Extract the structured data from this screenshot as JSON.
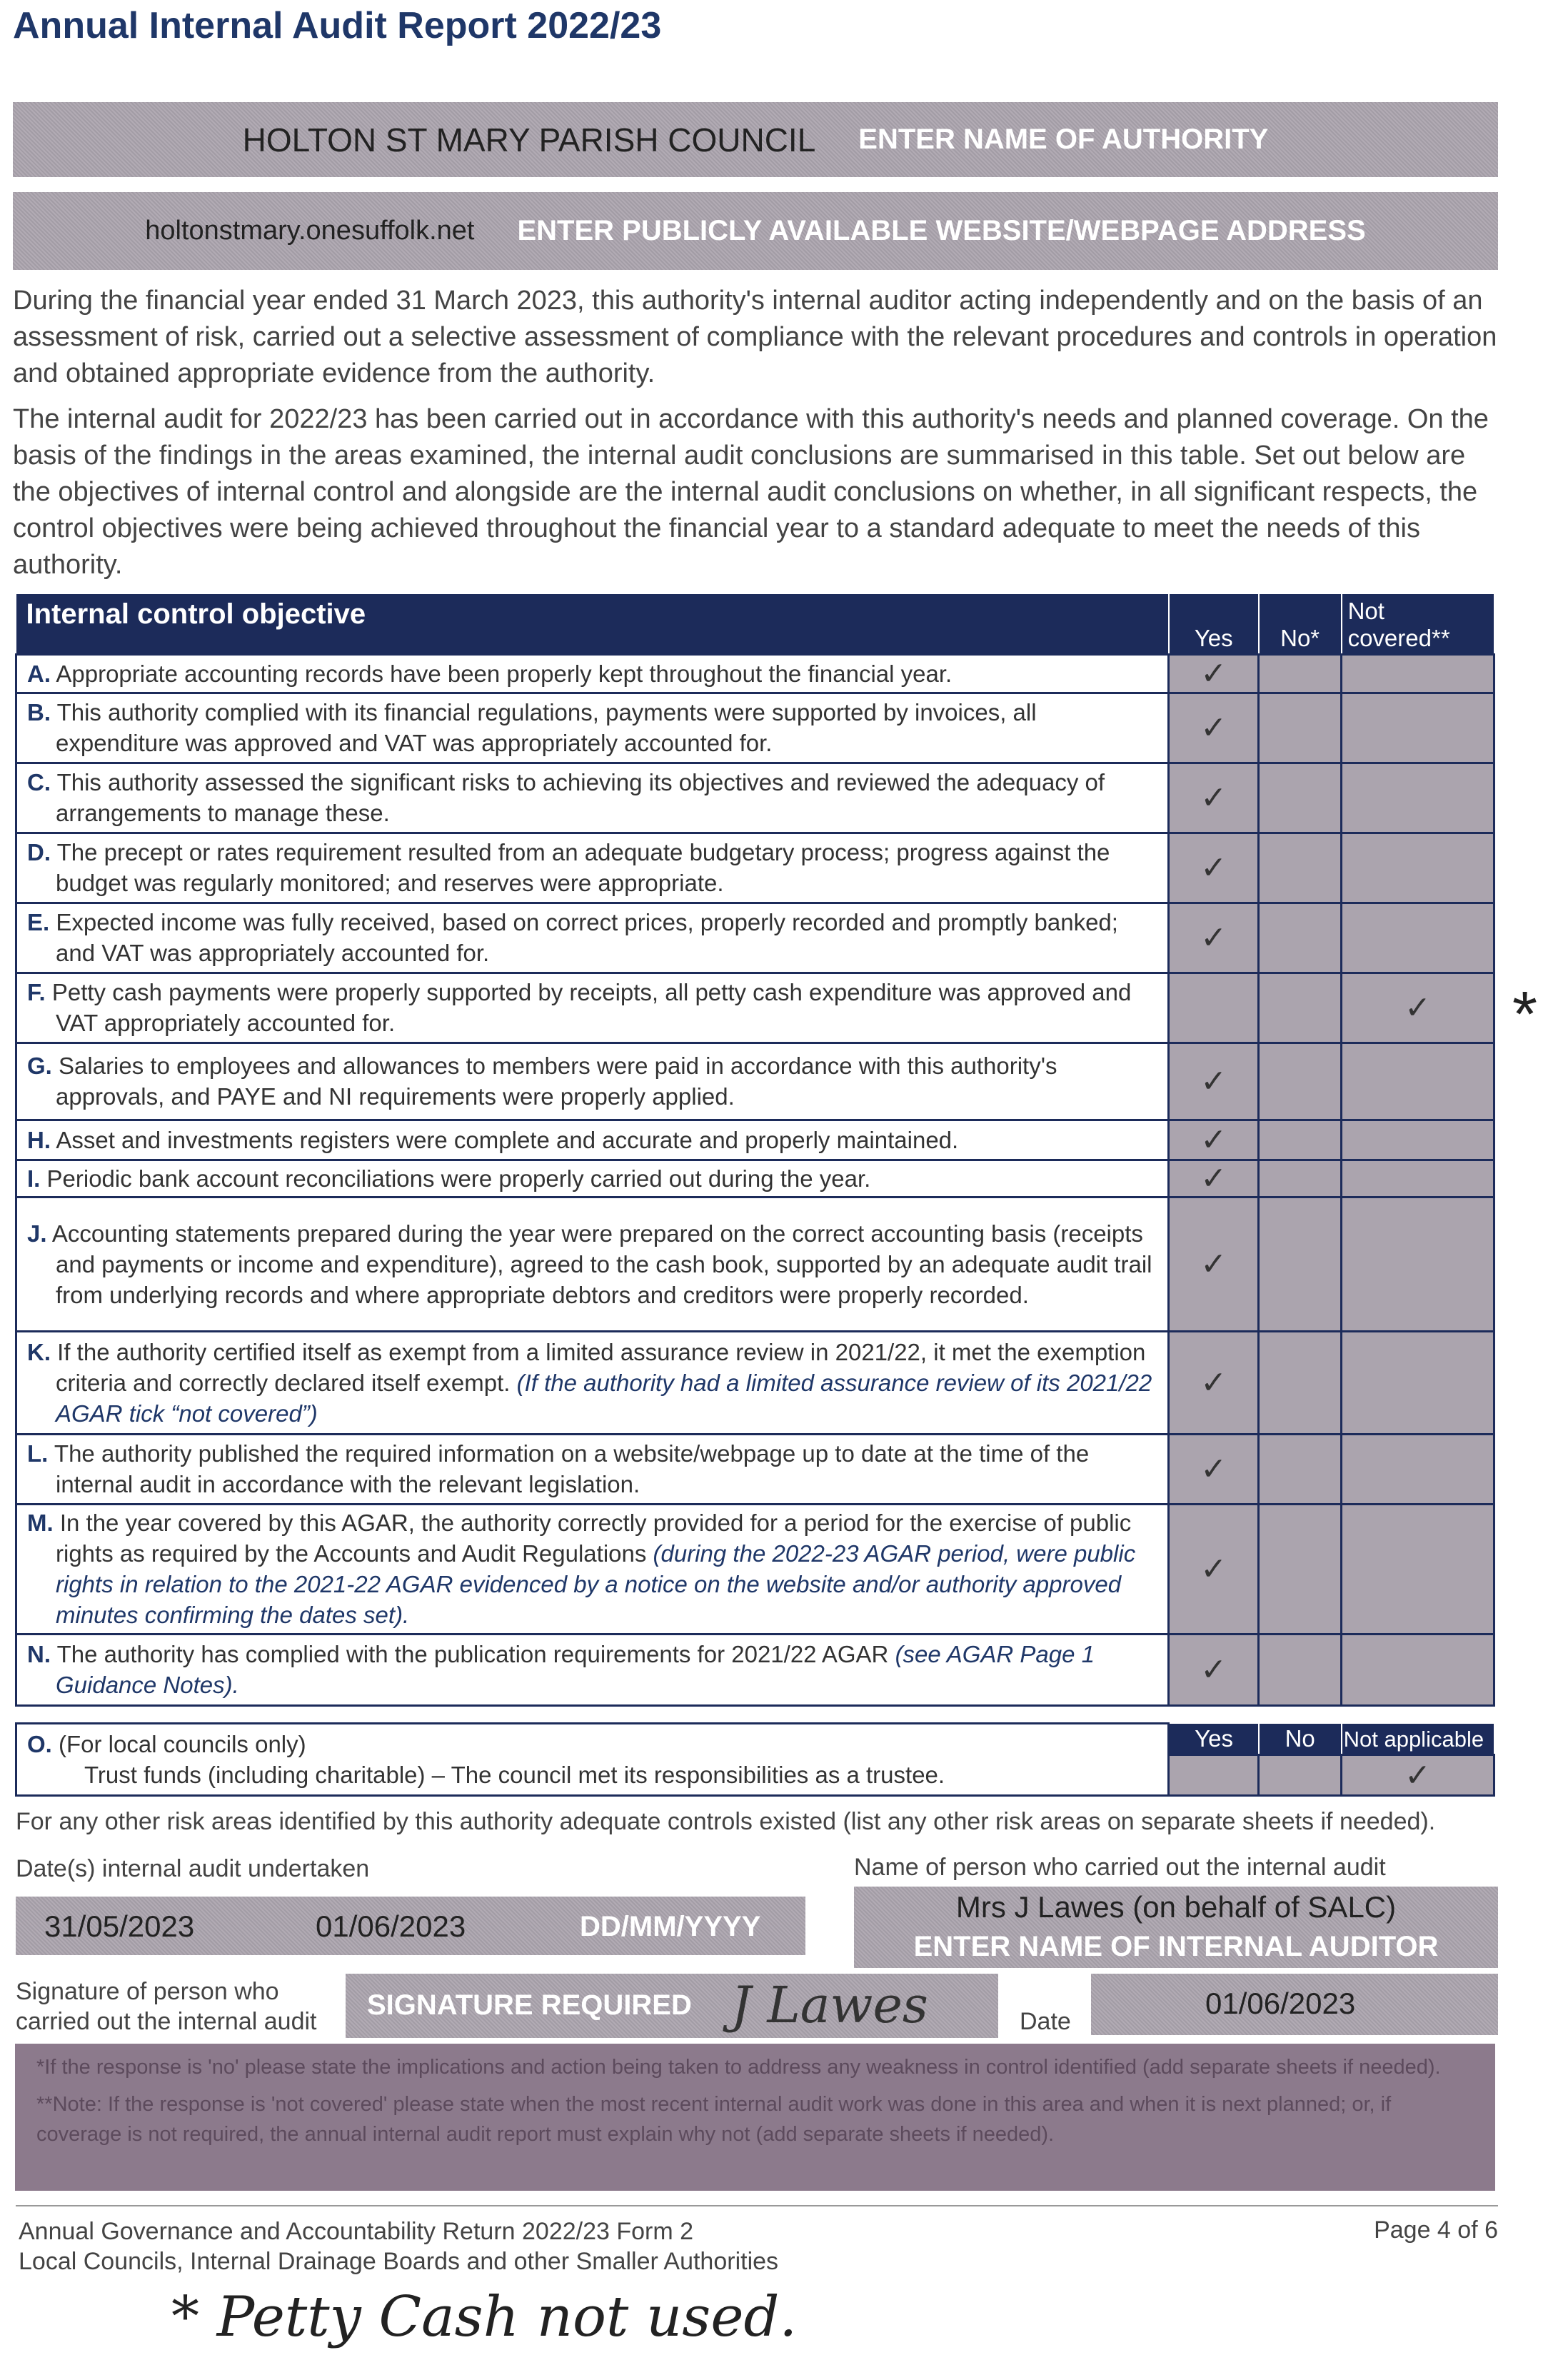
{
  "title": "Annual Internal Audit Report 2022/23",
  "authority": {
    "value": "HOLTON ST MARY PARISH COUNCIL",
    "placeholder": "ENTER NAME OF AUTHORITY"
  },
  "website": {
    "value": "holtonstmary.onesuffolk.net",
    "placeholder": "ENTER PUBLICLY AVAILABLE WEBSITE/WEBPAGE ADDRESS"
  },
  "intro": [
    "During the financial year ended 31 March 2023, this authority's internal auditor acting independently and on the basis of an assessment of risk, carried out a selective assessment of compliance with the relevant procedures and controls in operation and obtained appropriate evidence from the authority.",
    "The internal audit for 2022/23 has been carried out in accordance with this authority's needs and planned coverage. On the basis of the findings in the areas examined, the internal audit conclusions are summarised in this table. Set out below are the objectives of internal control and alongside are the internal audit conclusions on whether, in all significant respects, the control objectives were being achieved throughout the financial year to a standard adequate to meet the needs of this authority."
  ],
  "table": {
    "header": "Internal control objective",
    "cols": [
      "Yes",
      "No*",
      "Not covered**"
    ],
    "rows": [
      {
        "letter": "A.",
        "text": "Appropriate accounting records have been properly kept throughout the financial year.",
        "italic": "",
        "answer": "Yes"
      },
      {
        "letter": "B.",
        "text": "This authority complied with its financial regulations, payments were supported by invoices, all expenditure was approved and VAT was appropriately accounted for.",
        "italic": "",
        "answer": "Yes"
      },
      {
        "letter": "C.",
        "text": "This authority assessed the significant risks to achieving its objectives and reviewed the adequacy of arrangements to manage these.",
        "italic": "",
        "answer": "Yes"
      },
      {
        "letter": "D.",
        "text": "The precept or rates requirement resulted from an adequate budgetary process; progress against the budget was regularly monitored; and reserves were appropriate.",
        "italic": "",
        "answer": "Yes"
      },
      {
        "letter": "E.",
        "text": "Expected income was fully received, based on correct prices, properly recorded and promptly banked; and VAT was appropriately accounted for.",
        "italic": "",
        "answer": "Yes"
      },
      {
        "letter": "F.",
        "text": "Petty cash payments were properly supported by receipts, all petty cash expenditure was approved and VAT appropriately accounted for.",
        "italic": "",
        "answer": "Not covered"
      },
      {
        "letter": "G.",
        "text": "Salaries to employees and allowances to members were paid in accordance with this authority's approvals, and PAYE and NI requirements were properly applied.",
        "italic": "",
        "answer": "Yes"
      },
      {
        "letter": "H.",
        "text": "Asset and investments registers were complete and accurate and properly maintained.",
        "italic": "",
        "answer": "Yes"
      },
      {
        "letter": "I.",
        "text": "Periodic bank account reconciliations were properly carried out during the year.",
        "italic": "",
        "answer": "Yes"
      },
      {
        "letter": "J.",
        "text": "Accounting statements prepared during the year were prepared on the correct accounting basis (receipts and payments or income and expenditure), agreed to the cash book, supported by an adequate audit trail from underlying records and where appropriate debtors and creditors were properly recorded.",
        "italic": "",
        "answer": "Yes"
      },
      {
        "letter": "K.",
        "text": "If the authority certified itself as exempt from a limited assurance review in 2021/22, it met the exemption criteria and correctly declared itself exempt. ",
        "italic": "(If the authority had a limited assurance review of its 2021/22 AGAR tick “not covered”)",
        "answer": "Yes"
      },
      {
        "letter": "L.",
        "text": "The authority published the required information on a website/webpage up to date at the time of the internal audit in accordance with the relevant legislation.",
        "italic": "",
        "answer": "Yes"
      },
      {
        "letter": "M.",
        "text": "In the year covered by this AGAR, the authority correctly provided for a period for the exercise of public rights as required by the Accounts and Audit Regulations ",
        "italic": "(during the 2022-23 AGAR period, were public rights in relation to the 2021-22 AGAR evidenced by a notice on the website and/or authority approved minutes confirming the dates set).",
        "answer": "Yes"
      },
      {
        "letter": "N.",
        "text": "The authority has complied with the publication requirements for 2021/22 AGAR ",
        "italic": "(see AGAR Page 1 Guidance Notes).",
        "answer": "Yes"
      }
    ],
    "check": "✓",
    "margin_mark": "*"
  },
  "row_o": {
    "letter": "O.",
    "line1": "(For local councils only)",
    "line2": "Trust funds (including charitable) – The council met its responsibilities as a trustee.",
    "cols": [
      "Yes",
      "No",
      "Not applicable"
    ],
    "answer": "Not applicable"
  },
  "other_risk": "For any other risk areas identified by this authority adequate controls existed (list any other risk areas on separate sheets if needed).",
  "dates": {
    "label": "Date(s) internal audit undertaken",
    "values": [
      "31/05/2023",
      "01/06/2023",
      ""
    ],
    "placeholder": "DD/MM/YYYY"
  },
  "auditor": {
    "label": "Name of person who carried out the internal audit",
    "value": "Mrs J Lawes (on behalf of SALC)",
    "placeholder": "ENTER NAME OF INTERNAL AUDITOR"
  },
  "signature": {
    "label1": "Signature of person who",
    "label2": "carried out the internal audit",
    "placeholder": "SIGNATURE REQUIRED",
    "signed": "J Lawes",
    "date_label": "Date",
    "date": "01/06/2023"
  },
  "notes": [
    "*If the response is 'no' please state the implications and action being taken to address any weakness in control identified (add separate sheets if needed).",
    "**Note: If the response is 'not covered' please state when the most recent internal audit work was done in this area and when it is next planned; or, if coverage is not required, the annual internal audit report must explain why not (add separate sheets if needed)."
  ],
  "footer": {
    "line1": "Annual Governance and Accountability Return 2022/23 Form 2",
    "line2": "Local Councils, Internal Drainage Boards and other Smaller Authorities",
    "page": "Page 4 of 6"
  },
  "handwritten_note": "* Petty Cash not used."
}
